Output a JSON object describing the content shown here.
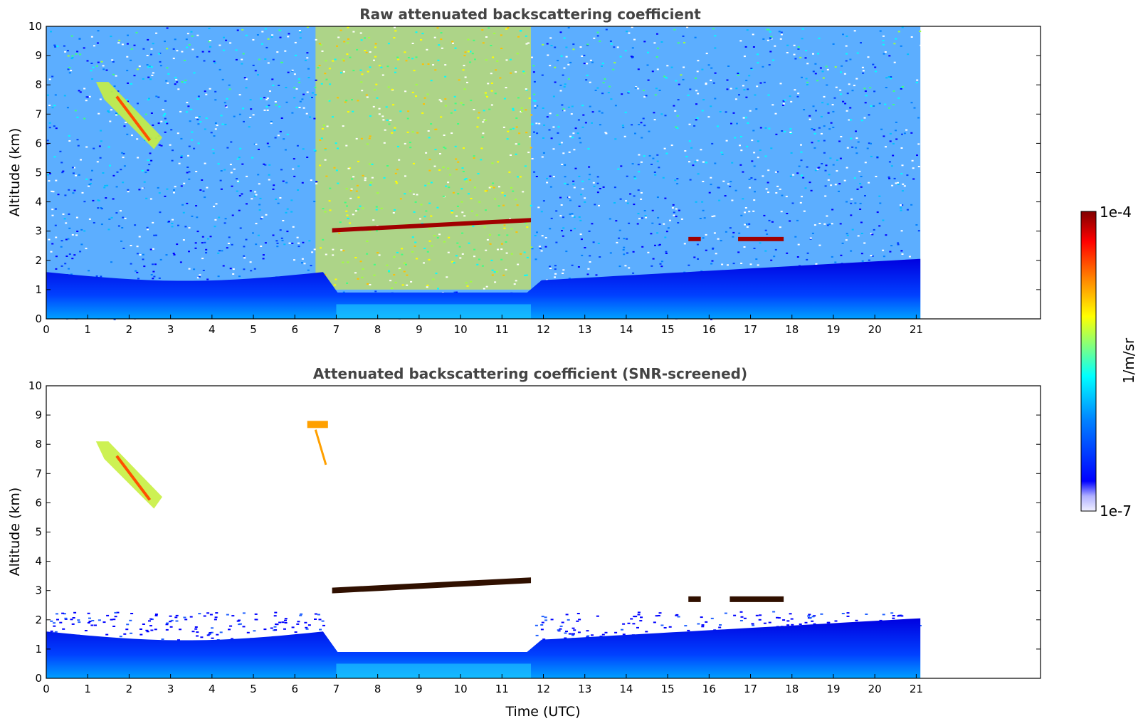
{
  "chart_data": [
    {
      "type": "heatmap",
      "title": "Raw attenuated backscattering coefficient",
      "xlabel": "",
      "ylabel": "Altitude (km)",
      "xlim": [
        0,
        24
      ],
      "ylim": [
        0,
        10
      ],
      "xticks": [
        "0",
        "1",
        "2",
        "3",
        "4",
        "5",
        "6",
        "7",
        "8",
        "9",
        "10",
        "11",
        "12",
        "13",
        "14",
        "15",
        "16",
        "17",
        "18",
        "19",
        "20",
        "21"
      ],
      "yticks": [
        "0",
        "1",
        "2",
        "3",
        "4",
        "5",
        "6",
        "7",
        "8",
        "9",
        "10"
      ],
      "data_end_time": 21.1,
      "features": [
        {
          "name": "cirrus",
          "t0": 1.2,
          "t1": 2.8,
          "alt_top": 8.1,
          "alt_bottom": 5.8
        },
        {
          "name": "cloud-layer",
          "t0": 6.9,
          "t1": 11.7,
          "alt": 3.1
        },
        {
          "name": "cloud-layer",
          "t0": 15.5,
          "t1": 15.8,
          "alt": 2.8
        },
        {
          "name": "cloud-layer",
          "t0": 16.7,
          "t1": 17.8,
          "alt": 2.8
        },
        {
          "name": "boundary-layer",
          "t0": 0,
          "t1": 21.1,
          "alt_top": 1.5
        }
      ]
    },
    {
      "type": "heatmap",
      "title": "Attenuated backscattering coefficient (SNR-screened)",
      "xlabel": "Time (UTC)",
      "ylabel": "Altitude (km)",
      "xlim": [
        0,
        24
      ],
      "ylim": [
        0,
        10
      ],
      "xticks": [
        "0",
        "1",
        "2",
        "3",
        "4",
        "5",
        "6",
        "7",
        "8",
        "9",
        "10",
        "11",
        "12",
        "13",
        "14",
        "15",
        "16",
        "17",
        "18",
        "19",
        "20",
        "21"
      ],
      "yticks": [
        "0",
        "1",
        "2",
        "3",
        "4",
        "5",
        "6",
        "7",
        "8",
        "9",
        "10"
      ],
      "data_end_time": 21.1,
      "features": [
        {
          "name": "cirrus",
          "t0": 1.2,
          "t1": 2.8,
          "alt_top": 8.1,
          "alt_bottom": 5.8
        },
        {
          "name": "cloud-fragment",
          "t0": 6.3,
          "t1": 6.8,
          "alt_top": 8.8,
          "alt_bottom": 7.3
        },
        {
          "name": "cloud-layer",
          "t0": 6.9,
          "t1": 11.7,
          "alt": 3.1
        },
        {
          "name": "cloud-layer",
          "t0": 15.5,
          "t1": 15.8,
          "alt": 2.8
        },
        {
          "name": "cloud-layer",
          "t0": 16.5,
          "t1": 17.8,
          "alt": 2.8
        },
        {
          "name": "boundary-layer",
          "t0": 0,
          "t1": 21.1,
          "alt_top": 1.5
        }
      ]
    }
  ],
  "colorbar": {
    "label": "1/m/sr",
    "max_label": "1e-4",
    "min_label": "1e-7",
    "colormap": "jet",
    "colors": [
      "#f0f0ff",
      "#b0b0ff",
      "#0000ff",
      "#0080ff",
      "#00ffff",
      "#80ff80",
      "#ffff00",
      "#ff8000",
      "#ff0000",
      "#800000"
    ]
  }
}
